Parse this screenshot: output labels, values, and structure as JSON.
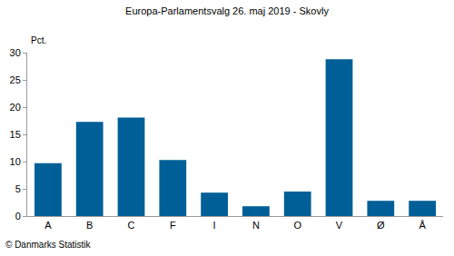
{
  "chart_data": {
    "type": "bar",
    "title": "Europa-Parlamentsvalg 26. maj 2019 - Skovly",
    "y_label": "Pct.",
    "footer": "© Danmarks Statistik",
    "categories": [
      "A",
      "B",
      "C",
      "F",
      "I",
      "N",
      "O",
      "V",
      "Ø",
      "Å"
    ],
    "values": [
      9.7,
      17.3,
      18.1,
      10.3,
      4.3,
      1.8,
      4.5,
      28.8,
      2.8,
      2.8
    ],
    "color": "#005f96",
    "ylim": [
      0,
      30
    ],
    "yticks": [
      0,
      5,
      10,
      15,
      20,
      25,
      30
    ],
    "grid": false
  }
}
